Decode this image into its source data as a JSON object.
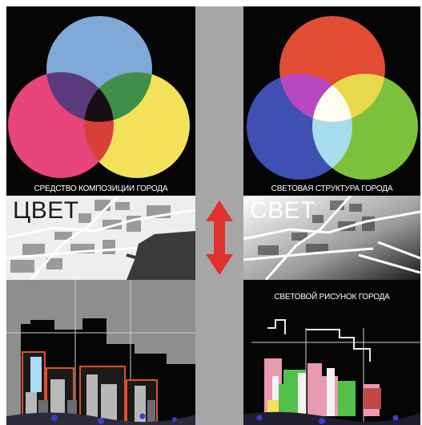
{
  "panels": {
    "color_venn": {
      "caption": "СРЕДСТВО КОМПОЗИЦИИ ГОРОДА"
    },
    "light_venn": {
      "caption": "СВЕТОВАЯ СТРУКТУРА ГОРОДА"
    },
    "map_color": {
      "label": "ЦВЕТ"
    },
    "map_light": {
      "label": "СВЕТ"
    },
    "skyline_light": {
      "caption": "СВЕТОВОЙ РИСУНОК ГОРОДА"
    }
  },
  "colors": {
    "subtractive": {
      "top": "#7ea9d8",
      "left": "#e8457a",
      "right": "#f3e15c"
    },
    "additive": {
      "top": "#e24c35",
      "left": "#3f4fb2",
      "right": "#7dc03c"
    },
    "arrow": "#e0322c",
    "divider": "#a7a7a7"
  },
  "icons": {
    "arrow": "double-headed-vertical-arrow"
  }
}
